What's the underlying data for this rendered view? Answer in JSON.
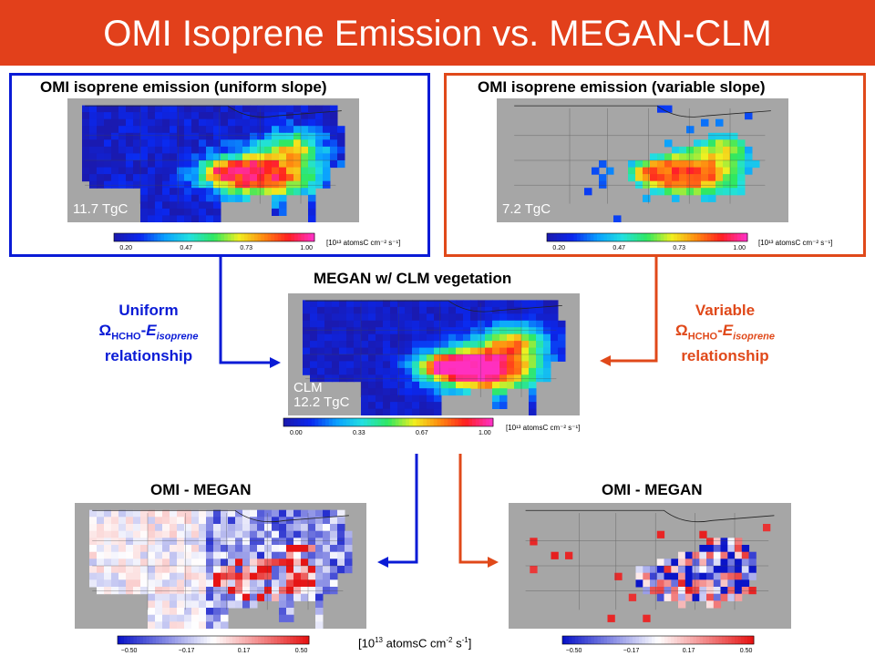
{
  "title": "OMI Isoprene Emission vs. MEGAN-CLM",
  "colors": {
    "title_bg": "#e2401b",
    "uniform": "#0a1bd6",
    "variable": "#e0491a",
    "land_gray": "#a6a6a6"
  },
  "panels": {
    "uniform": {
      "title": "OMI isoprene emission (uniform slope)",
      "total": "11.7 TgC",
      "colorbar_ticks": [
        "0.20",
        "0.47",
        "0.73",
        "1.00"
      ],
      "units": "[10¹³ atomsC cm⁻² s⁻¹]"
    },
    "variable": {
      "title": "OMI isoprene emission (variable slope)",
      "total": "7.2 TgC",
      "colorbar_ticks": [
        "0.20",
        "0.47",
        "0.73",
        "1.00"
      ],
      "units": "[10¹³ atomsC cm⁻² s⁻¹]"
    },
    "megan": {
      "title": "MEGAN w/ CLM vegetation",
      "model": "CLM",
      "total": "12.2 TgC",
      "colorbar_ticks": [
        "0.00",
        "0.33",
        "0.67",
        "1.00"
      ],
      "units": "[10¹³ atomsC cm⁻² s⁻¹]"
    },
    "diff_left": {
      "title": "OMI - MEGAN",
      "colorbar_ticks": [
        "−0.50",
        "−0.17",
        "0.17",
        "0.50"
      ]
    },
    "diff_right": {
      "title": "OMI - MEGAN",
      "colorbar_ticks": [
        "−0.50",
        "−0.17",
        "0.17",
        "0.50"
      ]
    }
  },
  "labels": {
    "uniform": {
      "line1": "Uniform",
      "omega": "Ω",
      "omega_sub": "HCHO",
      "dash": "-",
      "e": "E",
      "e_sub": "isoprene",
      "line3": "relationship"
    },
    "variable": {
      "line1": "Variable",
      "omega": "Ω",
      "omega_sub": "HCHO",
      "dash": "-",
      "e": "E",
      "e_sub": "isoprene",
      "line3": "relationship"
    }
  },
  "units_main": {
    "pre": "[10",
    "exp1": "13",
    "mid": " atomsC cm",
    "exp2": "-2",
    "mid2": " s",
    "exp3": "-1",
    "post": "]"
  }
}
